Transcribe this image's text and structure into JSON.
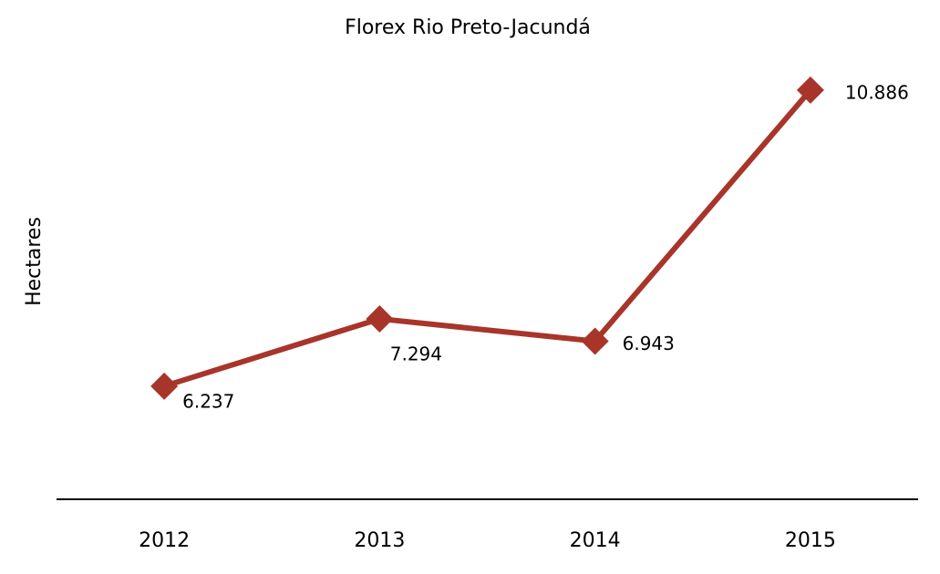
{
  "chart_data": {
    "type": "line",
    "title": "Florex Rio Preto-Jacundá",
    "y_label": "Hectares",
    "categories": [
      "2012",
      "2013",
      "2014",
      "2015"
    ],
    "series": [
      {
        "name": "Hectares",
        "color": "#a8352a",
        "values": [
          6237,
          7294,
          6943,
          10886
        ],
        "value_labels": [
          "6.237",
          "7.294",
          "6.943",
          "10.886"
        ]
      }
    ],
    "ylim": [
      4460,
      11300
    ]
  }
}
